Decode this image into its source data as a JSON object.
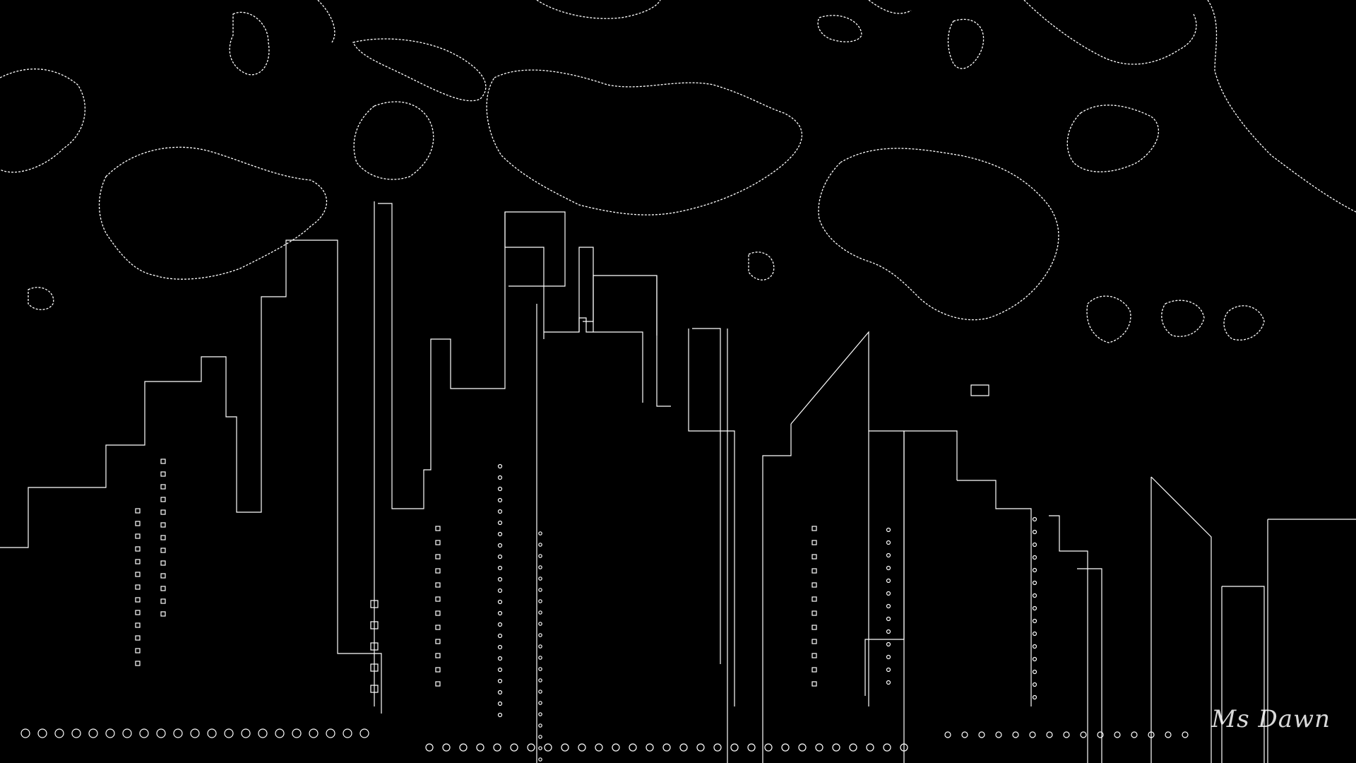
{
  "scene": {
    "description_type": "edge-detected night city skyline with clouds",
    "background_color": "#000000",
    "line_color": "#ffffff"
  },
  "signature": {
    "text": "Ms Dawn"
  }
}
